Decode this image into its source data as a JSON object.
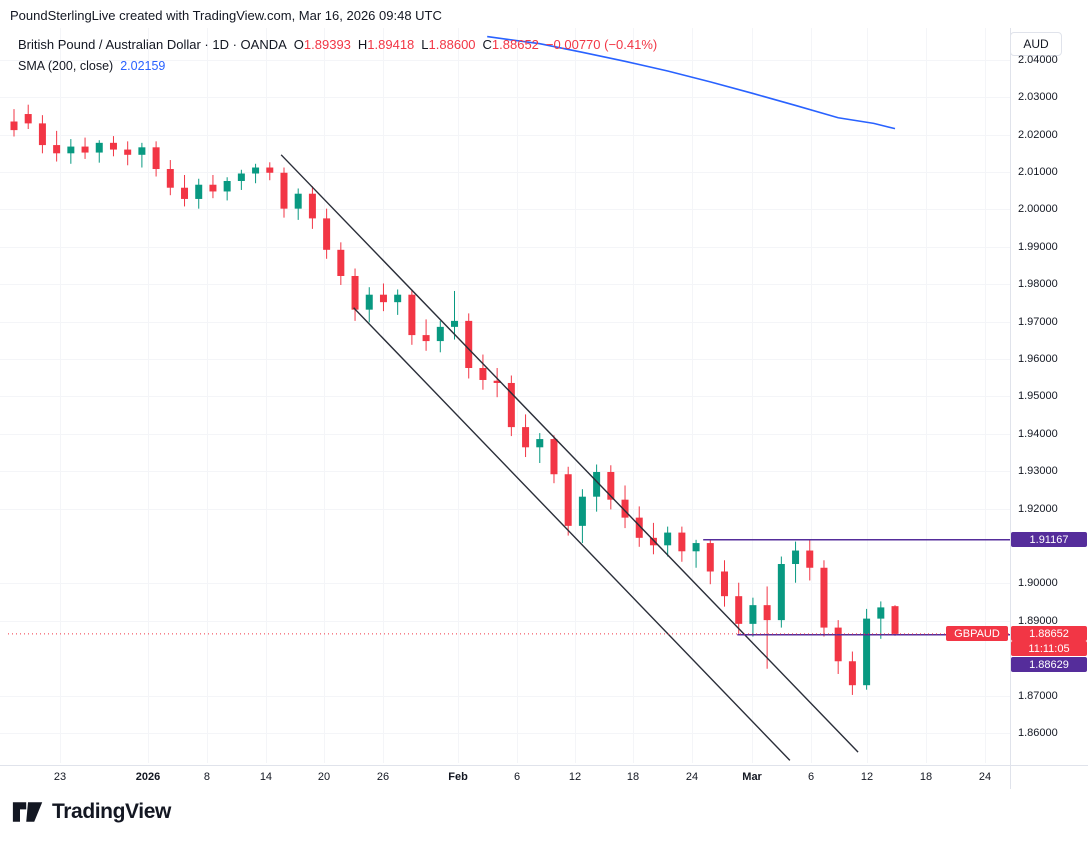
{
  "header": {
    "attribution": "PoundSterlingLive created with TradingView.com, Mar 16, 2026 09:48 UTC"
  },
  "legend": {
    "title": "British Pound / Australian Dollar · 1D · OANDA",
    "open_label": "O",
    "open": "1.89393",
    "high_label": "H",
    "high": "1.89418",
    "low_label": "L",
    "low": "1.88600",
    "close_label": "C",
    "close": "1.88652",
    "change": "−0.00770 (−0.41%)",
    "indicator_name": "SMA (200, close)",
    "indicator_value": "2.02159"
  },
  "price_axis": {
    "currency": "AUD",
    "ticks": [
      "2.04000",
      "2.03000",
      "2.02000",
      "2.01000",
      "2.00000",
      "1.99000",
      "1.98000",
      "1.97000",
      "1.96000",
      "1.95000",
      "1.94000",
      "1.93000",
      "1.92000",
      "1.90000",
      "1.89000",
      "1.87000",
      "1.86000"
    ]
  },
  "time_axis": {
    "ticks": [
      {
        "label": "23",
        "i": 3.24
      },
      {
        "label": "2026",
        "i": 9.43,
        "major": true
      },
      {
        "label": "8",
        "i": 13.58
      },
      {
        "label": "14",
        "i": 17.73
      },
      {
        "label": "20",
        "i": 21.82
      },
      {
        "label": "26",
        "i": 25.97
      },
      {
        "label": "Feb",
        "i": 31.25,
        "major": true
      },
      {
        "label": "6",
        "i": 35.4
      },
      {
        "label": "12",
        "i": 39.48
      },
      {
        "label": "18",
        "i": 43.56
      },
      {
        "label": "24",
        "i": 47.71
      },
      {
        "label": "Mar",
        "i": 51.94,
        "major": true
      },
      {
        "label": "6",
        "i": 56.09
      },
      {
        "label": "12",
        "i": 60.03
      },
      {
        "label": "18",
        "i": 64.18
      },
      {
        "label": "24",
        "i": 68.33
      }
    ]
  },
  "price_labels": {
    "resistance": "1.91167",
    "support": "1.88629",
    "symbol": "GBPAUD",
    "last": "1.88652",
    "countdown": "11:11:05"
  },
  "footer": {
    "brand": "TradingView"
  },
  "colors": {
    "up": "#089981",
    "down": "#F23645",
    "sma": "#2962FF",
    "purple": "#552d9b",
    "channel": "#2a2e39",
    "last_line": "#F23645",
    "axis_border": "#e0e3eb",
    "grid": "#f4f5f8",
    "axis_text": "#131722"
  },
  "chart_data": {
    "type": "candlestick",
    "title": "British Pound / Australian Dollar, 1D, OANDA",
    "ylabel": "AUD",
    "ylim": [
      1.852,
      2.0485
    ],
    "gridlines": "faint",
    "legend_position": "top-left",
    "candles": [
      [
        2.0235,
        2.0268,
        2.0195,
        2.0212
      ],
      [
        2.0255,
        2.028,
        2.0215,
        2.023
      ],
      [
        2.023,
        2.0252,
        2.015,
        2.0172
      ],
      [
        2.0172,
        2.021,
        2.0128,
        2.015
      ],
      [
        2.015,
        2.0188,
        2.0122,
        2.0168
      ],
      [
        2.0168,
        2.0192,
        2.0135,
        2.0152
      ],
      [
        2.0152,
        2.0185,
        2.0125,
        2.0178
      ],
      [
        2.0178,
        2.0196,
        2.0142,
        2.016
      ],
      [
        2.016,
        2.0182,
        2.0118,
        2.0146
      ],
      [
        2.0146,
        2.0178,
        2.0112,
        2.0166
      ],
      [
        2.0166,
        2.0182,
        2.0088,
        2.0108
      ],
      [
        2.0108,
        2.0132,
        2.0038,
        2.0058
      ],
      [
        2.0058,
        2.0092,
        2.0008,
        2.0028
      ],
      [
        2.0028,
        2.0082,
        2.0002,
        2.0066
      ],
      [
        2.0066,
        2.0092,
        2.003,
        2.0048
      ],
      [
        2.0048,
        2.0086,
        2.0024,
        2.0076
      ],
      [
        2.0076,
        2.0106,
        2.0052,
        2.0096
      ],
      [
        2.0096,
        2.0122,
        2.007,
        2.0112
      ],
      [
        2.0112,
        2.0126,
        2.0078,
        2.0098
      ],
      [
        2.0098,
        2.0112,
        1.9978,
        2.0002
      ],
      [
        2.0002,
        2.0056,
        1.9972,
        2.0042
      ],
      [
        2.0042,
        2.0062,
        1.9948,
        1.9976
      ],
      [
        1.9976,
        2.0002,
        1.9868,
        1.9892
      ],
      [
        1.9892,
        1.9912,
        1.9798,
        1.9822
      ],
      [
        1.9822,
        1.9842,
        1.9702,
        1.9732
      ],
      [
        1.9732,
        1.9792,
        1.9698,
        1.9772
      ],
      [
        1.9772,
        1.9802,
        1.9728,
        1.9752
      ],
      [
        1.9752,
        1.9786,
        1.9718,
        1.9772
      ],
      [
        1.9772,
        1.9786,
        1.9638,
        1.9664
      ],
      [
        1.9664,
        1.9706,
        1.9622,
        1.9648
      ],
      [
        1.9648,
        1.9702,
        1.9618,
        1.9686
      ],
      [
        1.9686,
        1.9782,
        1.9652,
        1.9702
      ],
      [
        1.9702,
        1.9722,
        1.9548,
        1.9576
      ],
      [
        1.9576,
        1.9612,
        1.9518,
        1.9544
      ],
      [
        1.9542,
        1.9576,
        1.9498,
        1.9536
      ],
      [
        1.9536,
        1.9556,
        1.9394,
        1.9418
      ],
      [
        1.9418,
        1.9452,
        1.9338,
        1.9364
      ],
      [
        1.9364,
        1.9402,
        1.9322,
        1.9386
      ],
      [
        1.9386,
        1.9396,
        1.9268,
        1.9292
      ],
      [
        1.9292,
        1.9312,
        1.9128,
        1.9154
      ],
      [
        1.9154,
        1.9252,
        1.9108,
        1.9232
      ],
      [
        1.9232,
        1.9318,
        1.9192,
        1.9298
      ],
      [
        1.9298,
        1.9316,
        1.9198,
        1.9224
      ],
      [
        1.9224,
        1.9262,
        1.9148,
        1.9176
      ],
      [
        1.9176,
        1.9206,
        1.9098,
        1.9122
      ],
      [
        1.9122,
        1.9162,
        1.9078,
        1.9102
      ],
      [
        1.9102,
        1.9152,
        1.9072,
        1.9136
      ],
      [
        1.9136,
        1.9152,
        1.9058,
        1.9086
      ],
      [
        1.9086,
        1.91167,
        1.9042,
        1.9108
      ],
      [
        1.9108,
        1.9117,
        1.8998,
        1.9032
      ],
      [
        1.9032,
        1.9062,
        1.8938,
        1.8966
      ],
      [
        1.8966,
        1.9002,
        1.88629,
        1.8892
      ],
      [
        1.8892,
        1.8962,
        1.8858,
        1.8942
      ],
      [
        1.8942,
        1.8992,
        1.8772,
        1.8902
      ],
      [
        1.8902,
        1.9072,
        1.8882,
        1.9052
      ],
      [
        1.9052,
        1.9112,
        1.9002,
        1.9088
      ],
      [
        1.9088,
        1.9117,
        1.9008,
        1.9042
      ],
      [
        1.9042,
        1.9062,
        1.8858,
        1.8882
      ],
      [
        1.8882,
        1.8902,
        1.8758,
        1.8792
      ],
      [
        1.8792,
        1.8818,
        1.8702,
        1.8728
      ],
      [
        1.8728,
        1.8932,
        1.8716,
        1.8906
      ],
      [
        1.8906,
        1.8952,
        1.8852,
        1.8936
      ],
      [
        1.89393,
        1.89418,
        1.886,
        1.88652
      ]
    ],
    "overlays": {
      "sma200": {
        "label": "SMA (200, close)",
        "last_value": 2.02159,
        "points": [
          [
            33.3,
            2.0462
          ],
          [
            37,
            2.0443
          ],
          [
            40,
            2.042
          ],
          [
            43,
            2.0396
          ],
          [
            46,
            2.037
          ],
          [
            49,
            2.0341
          ],
          [
            52,
            2.031
          ],
          [
            55,
            2.0278
          ],
          [
            58,
            2.0245
          ],
          [
            60.5,
            2.023
          ],
          [
            62,
            2.02159
          ]
        ]
      },
      "trend_channel": {
        "upper": [
          [
            18.8,
            2.0146
          ],
          [
            59.4,
            1.8549
          ]
        ],
        "lower": [
          [
            23.9,
            1.9737
          ],
          [
            54.6,
            1.8527
          ]
        ]
      },
      "horizontal_rays": [
        {
          "price": 1.91167,
          "from_index": 48.5
        },
        {
          "price": 1.88629,
          "from_index": 50.9
        }
      ],
      "last_price": 1.88652
    }
  }
}
